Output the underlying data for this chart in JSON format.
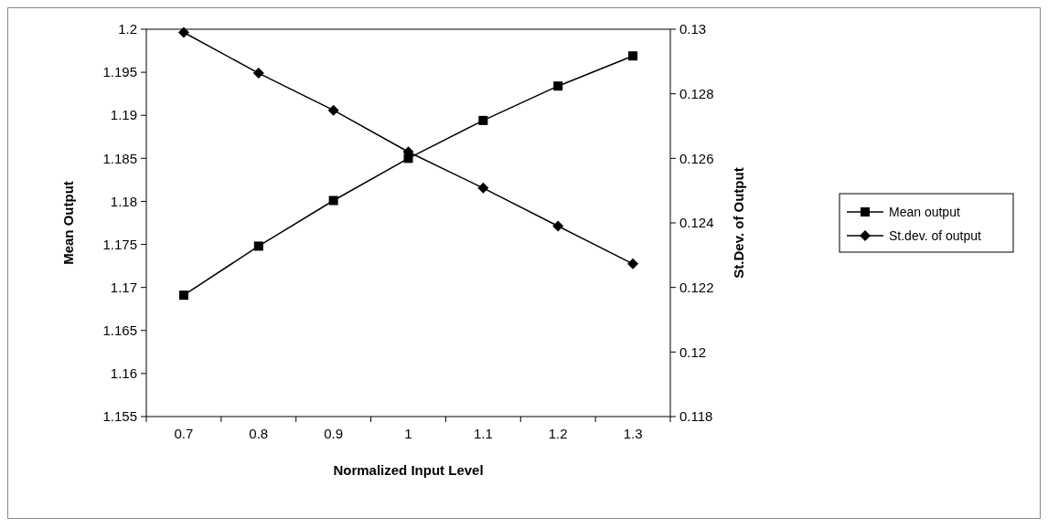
{
  "chart_data": {
    "type": "line",
    "xlabel": "Normalized Input Level",
    "ylabel": "Mean Output",
    "y2label": "St.Dev. of Output",
    "categories": [
      "0.7",
      "0.8",
      "0.9",
      "1",
      "1.1",
      "1.2",
      "1.3"
    ],
    "series": [
      {
        "name": "Mean output",
        "color": "#000000",
        "marker": "square",
        "values": [
          1.1691,
          1.1748,
          1.1801,
          1.185,
          1.1894,
          1.1934,
          1.1969
        ]
      },
      {
        "name": "St.dev. of output",
        "color": "#000000",
        "marker": "diamond",
        "axis": "y2",
        "values": [
          0.1299,
          0.12864,
          0.12749,
          0.1262,
          0.12508,
          0.1239,
          0.12273
        ]
      }
    ],
    "ylim": [
      1.155,
      1.2
    ],
    "yticks": [
      1.155,
      1.16,
      1.165,
      1.17,
      1.175,
      1.18,
      1.185,
      1.19,
      1.195,
      1.2
    ],
    "y2lim": [
      0.118,
      0.13
    ],
    "y2ticks": [
      0.118,
      0.12,
      0.122,
      0.124,
      0.126,
      0.128,
      0.13
    ],
    "grid": false,
    "legend": "right",
    "line_style": "solid"
  }
}
